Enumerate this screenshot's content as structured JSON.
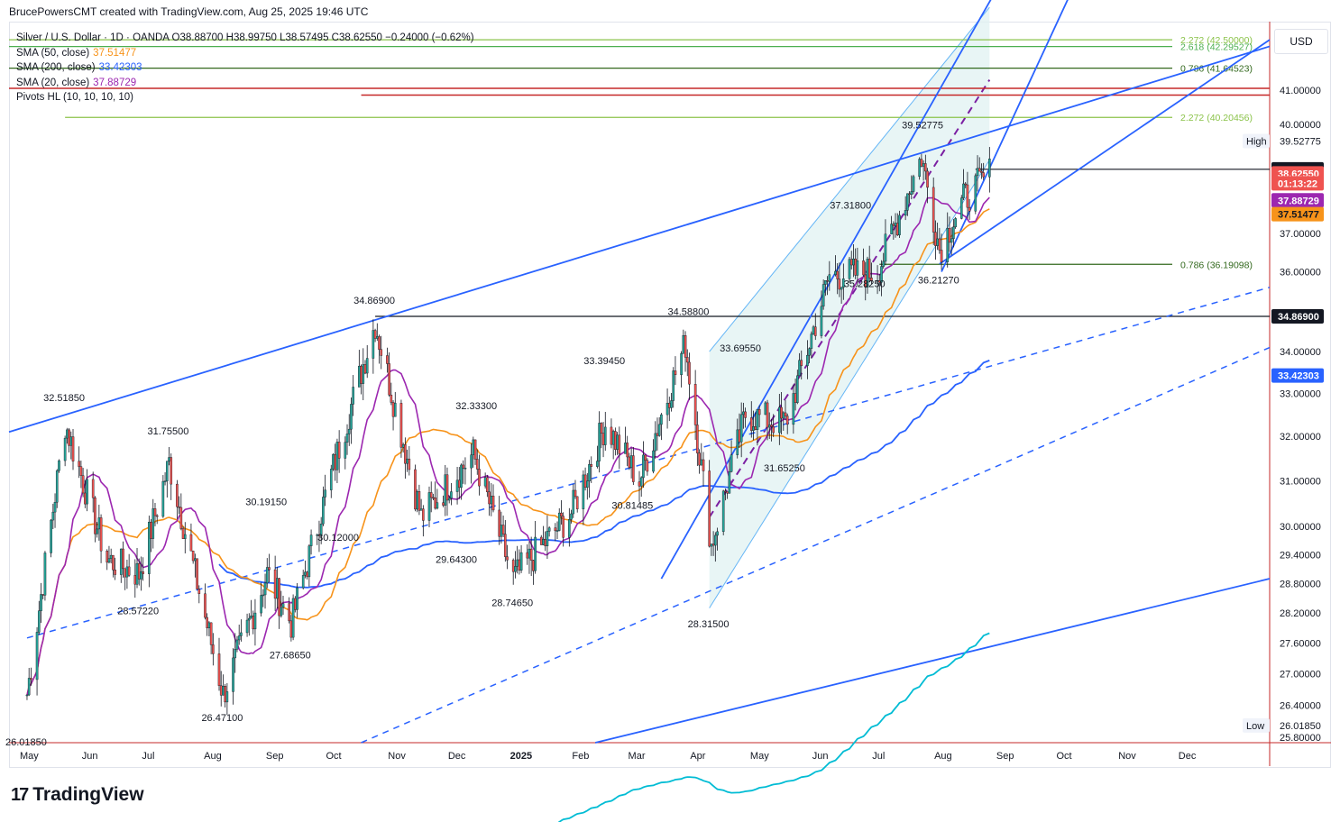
{
  "header": {
    "attribution": "BrucePowersCMT created with TradingView.com, Aug 25, 2025 19:46 UTC"
  },
  "legend": {
    "symbol_line": "Silver / U.S. Dollar · 1D · OANDA  O38.88700  H38.99750  L38.57495  C38.62550  −0.24000 (−0.62%)",
    "indicators": [
      {
        "label": "SMA (50, close)",
        "value": "37.51477",
        "color": "#f7931a"
      },
      {
        "label": "SMA (200, close)",
        "value": "33.42303",
        "color": "#2962ff"
      },
      {
        "label": "SMA (20, close)",
        "value": "37.88729",
        "color": "#9c27b0"
      },
      {
        "label": "Pivots HL (10, 10, 10, 10)",
        "value": "",
        "color": "#131722"
      }
    ]
  },
  "currency_button": "USD",
  "branding": {
    "logo": "17",
    "name": "TradingView"
  },
  "chart_data": {
    "type": "line",
    "title": "Silver / U.S. Dollar · 1D · OANDA",
    "series_note": "Daily candlesticks, approximate closes read from the chart",
    "ohlc_last": {
      "open": 38.887,
      "high": 38.9975,
      "low": 38.57495,
      "close": 38.6255,
      "change": -0.24,
      "change_pct": -0.62
    },
    "x_ticks": [
      "May",
      "Jun",
      "Jul",
      "Aug",
      "Sep",
      "Oct",
      "Nov",
      "Dec",
      "2025",
      "Feb",
      "Mar",
      "Apr",
      "May",
      "Jun",
      "Jul",
      "Aug",
      "Sep",
      "Oct",
      "Nov",
      "Dec"
    ],
    "y_ticks": [
      "41.00000",
      "40.00000",
      "39.52775",
      "38.73800",
      "38.62550",
      "37.88729",
      "37.51477",
      "37.00000",
      "36.00000",
      "34.86900",
      "34.00000",
      "33.42303",
      "33.00000",
      "32.00000",
      "31.00000",
      "30.00000",
      "29.40000",
      "28.80000",
      "28.20000",
      "27.60000",
      "27.00000",
      "26.40000",
      "26.01850",
      "25.80000"
    ],
    "ylim": [
      25.7,
      43.0
    ],
    "y_scale": "log",
    "price_path_monthly": [
      {
        "t": "2024-05-01",
        "v": 26.6
      },
      {
        "t": "2024-05-20",
        "v": 32.3
      },
      {
        "t": "2024-06-10",
        "v": 29.3
      },
      {
        "t": "2024-06-26",
        "v": 29.0
      },
      {
        "t": "2024-07-11",
        "v": 31.4
      },
      {
        "t": "2024-08-07",
        "v": 26.6
      },
      {
        "t": "2024-08-29",
        "v": 29.0
      },
      {
        "t": "2024-09-10",
        "v": 28.0
      },
      {
        "t": "2024-10-01",
        "v": 31.3
      },
      {
        "t": "2024-10-22",
        "v": 34.7
      },
      {
        "t": "2024-11-14",
        "v": 30.2
      },
      {
        "t": "2024-12-10",
        "v": 31.6
      },
      {
        "t": "2024-12-30",
        "v": 28.9
      },
      {
        "t": "2025-01-28",
        "v": 30.3
      },
      {
        "t": "2025-02-14",
        "v": 32.3
      },
      {
        "t": "2025-03-03",
        "v": 31.0
      },
      {
        "t": "2025-03-26",
        "v": 34.2
      },
      {
        "t": "2025-04-08",
        "v": 29.6
      },
      {
        "t": "2025-04-25",
        "v": 32.5
      },
      {
        "t": "2025-05-15",
        "v": 32.3
      },
      {
        "t": "2025-06-06",
        "v": 35.9
      },
      {
        "t": "2025-06-30",
        "v": 36.0
      },
      {
        "t": "2025-07-22",
        "v": 39.1
      },
      {
        "t": "2025-07-31",
        "v": 36.6
      },
      {
        "t": "2025-08-12",
        "v": 37.9
      },
      {
        "t": "2025-08-25",
        "v": 38.63
      }
    ],
    "pivot_labels": [
      {
        "text": "26.01850",
        "t": "2024-05-01",
        "v": 26.0185,
        "pos": "below"
      },
      {
        "text": "32.51850",
        "t": "2024-05-20",
        "v": 32.5185,
        "pos": "above"
      },
      {
        "text": "28.57220",
        "t": "2024-06-26",
        "v": 28.5722,
        "pos": "below"
      },
      {
        "text": "31.75500",
        "t": "2024-07-11",
        "v": 31.755,
        "pos": "above"
      },
      {
        "text": "26.47100",
        "t": "2024-08-07",
        "v": 26.471,
        "pos": "below"
      },
      {
        "text": "30.19150",
        "t": "2024-08-29",
        "v": 30.1915,
        "pos": "above"
      },
      {
        "text": "27.68650",
        "t": "2024-09-10",
        "v": 27.6865,
        "pos": "below"
      },
      {
        "text": "30.12000",
        "t": "2024-10-04",
        "v": 30.12,
        "pos": "below"
      },
      {
        "text": "34.86900",
        "t": "2024-10-22",
        "v": 34.869,
        "pos": "above"
      },
      {
        "text": "29.64300",
        "t": "2024-12-02",
        "v": 29.643,
        "pos": "below"
      },
      {
        "text": "32.33300",
        "t": "2024-12-12",
        "v": 32.333,
        "pos": "above"
      },
      {
        "text": "28.74650",
        "t": "2024-12-30",
        "v": 28.7465,
        "pos": "below"
      },
      {
        "text": "33.39450",
        "t": "2025-02-14",
        "v": 33.3945,
        "pos": "above"
      },
      {
        "text": "30.81485",
        "t": "2025-02-28",
        "v": 30.81485,
        "pos": "below"
      },
      {
        "text": "34.58800",
        "t": "2025-03-28",
        "v": 34.588,
        "pos": "above"
      },
      {
        "text": "28.31500",
        "t": "2025-04-07",
        "v": 28.315,
        "pos": "below"
      },
      {
        "text": "33.69550",
        "t": "2025-04-23",
        "v": 33.6955,
        "pos": "above"
      },
      {
        "text": "31.65250",
        "t": "2025-05-15",
        "v": 31.6525,
        "pos": "below"
      },
      {
        "text": "35.28250",
        "t": "2025-06-24",
        "v": 35.2825,
        "pos": "above"
      },
      {
        "text": "37.31800",
        "t": "2025-06-17",
        "v": 37.318,
        "pos": "above"
      },
      {
        "text": "39.52775",
        "t": "2025-07-23",
        "v": 39.52775,
        "pos": "above"
      },
      {
        "text": "36.21270",
        "t": "2025-07-31",
        "v": 36.2127,
        "pos": "below"
      }
    ],
    "fib_levels": [
      {
        "text": "2.272 (42.50000)",
        "v": 42.5,
        "color": "#8bc34a"
      },
      {
        "text": "2.618 (42.29527)",
        "v": 42.29527,
        "color": "#4caf50"
      },
      {
        "text": "0.786 (41.64523)",
        "v": 41.64523,
        "color": "#33691e"
      },
      {
        "text": "2.272 (40.20456)",
        "v": 40.20456,
        "color": "#8bc34a"
      },
      {
        "text": "0.786 (36.19098)",
        "v": 36.19098,
        "color": "#33691e"
      }
    ],
    "horizontal_levels": [
      {
        "v": 34.869,
        "color": "#131722"
      },
      {
        "v": 38.738,
        "color": "#131722"
      },
      {
        "v": 41.05,
        "color": "#c62828"
      },
      {
        "v": 40.85,
        "color": "#c62828"
      }
    ],
    "price_scale_badges": [
      {
        "text": "High",
        "v": 39.52775,
        "style": "tag"
      },
      {
        "text": "39.52775",
        "v": 39.52775,
        "style": "plain"
      },
      {
        "text": "38.73800",
        "v": 38.738,
        "bg": "#131722",
        "fg": "#ffffff"
      },
      {
        "text": "38.62550",
        "v": 38.6255,
        "bg": "#ef5350",
        "fg": "#ffffff"
      },
      {
        "text": "01:13:22",
        "v": 38.35,
        "bg": "#ef5350",
        "fg": "#ffffff"
      },
      {
        "text": "37.88729",
        "v": 37.88729,
        "bg": "#9c27b0",
        "fg": "#ffffff"
      },
      {
        "text": "37.51477",
        "v": 37.51477,
        "bg": "#f7931a",
        "fg": "#131722"
      },
      {
        "text": "34.86900",
        "v": 34.869,
        "bg": "#131722",
        "fg": "#ffffff"
      },
      {
        "text": "33.42303",
        "v": 33.42303,
        "bg": "#2962ff",
        "fg": "#ffffff"
      },
      {
        "text": "Low",
        "v": 26.0185,
        "style": "tag"
      },
      {
        "text": "26.01850",
        "v": 26.0185,
        "style": "plain"
      }
    ],
    "colors": {
      "up": "#26a69a",
      "down": "#ef5350",
      "sma20": "#9c27b0",
      "sma50": "#f7931a",
      "sma200": "#2962ff",
      "long_ma": "#00bcd4",
      "channel": "#2962ff",
      "channel_fill": "#e0f2f1"
    }
  }
}
